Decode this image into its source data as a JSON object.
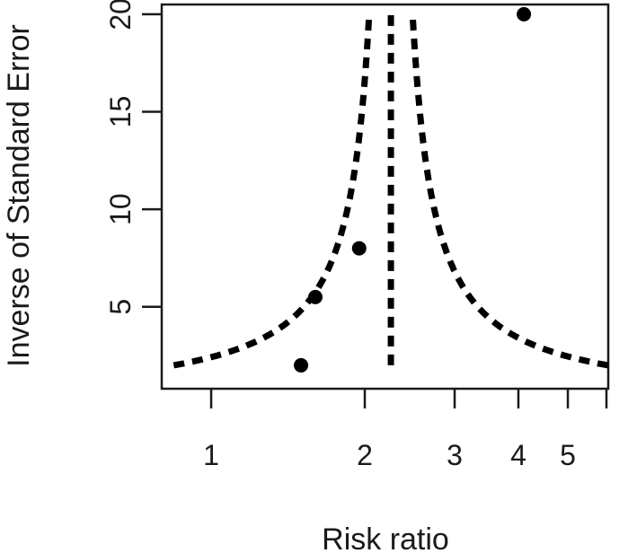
{
  "chart_data": {
    "type": "scatter",
    "title": "",
    "xlabel": "Risk ratio",
    "ylabel": "Inverse of Standard Error",
    "x_scale": "log",
    "xlim": [
      0.8,
      6.0
    ],
    "ylim": [
      0.8,
      20.5
    ],
    "x_ticks": [
      1,
      2,
      3,
      4,
      5
    ],
    "x_tick_labels": [
      "1",
      "2",
      "3",
      "4",
      "5"
    ],
    "y_ticks": [
      5,
      10,
      15,
      20
    ],
    "y_tick_labels": [
      "5",
      "10",
      "15",
      "20"
    ],
    "grid": false,
    "legend": "none",
    "points": [
      {
        "x": 1.5,
        "y": 2.0
      },
      {
        "x": 1.6,
        "y": 5.5
      },
      {
        "x": 1.95,
        "y": 8.0
      },
      {
        "x": 4.1,
        "y": 20.0
      }
    ],
    "pooled_estimate": 2.25,
    "funnel_limits": {
      "y_min": 2.0,
      "y_max": 20.0,
      "z": 1.96
    },
    "colors": {
      "points": "#000000",
      "lines": "#000000",
      "axes": "#1a1a1a"
    }
  }
}
